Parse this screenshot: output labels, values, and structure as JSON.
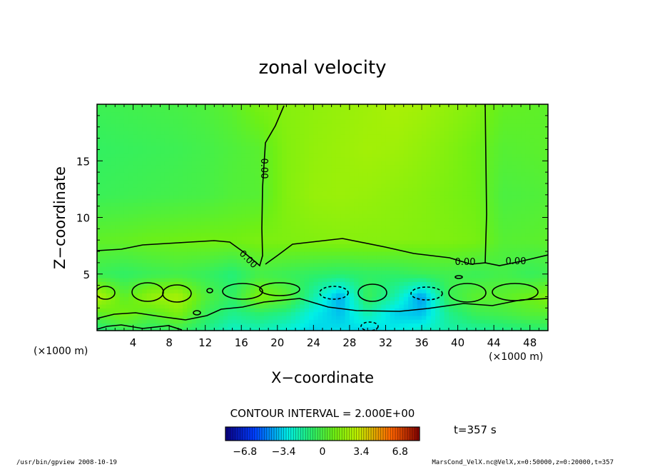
{
  "chart_data": {
    "type": "heatmap",
    "title": "zonal velocity",
    "xlabel": "X−coordinate",
    "ylabel": "Z−coordinate",
    "x_units": "(×1000 m)",
    "y_units": "(×1000 m)",
    "xlim": [
      0,
      50
    ],
    "ylim": [
      0,
      20
    ],
    "x_ticks": [
      4,
      8,
      12,
      16,
      20,
      24,
      28,
      32,
      36,
      40,
      44,
      48
    ],
    "x_tick_labels": [
      "4",
      "8",
      "12",
      "16",
      "20",
      "24",
      "28",
      "32",
      "36",
      "40",
      "44",
      "48"
    ],
    "y_ticks": [
      5,
      10,
      15
    ],
    "y_tick_labels": [
      "5",
      "10",
      "15"
    ],
    "contour_interval_text": "CONTOUR INTERVAL = 2.000E+00",
    "time_label": "t=357 s",
    "contour_labels": [
      "0.00",
      "0.00",
      "0.00",
      "0.00"
    ],
    "colorbar": {
      "vmin": -8.5,
      "vmax": 8.5,
      "tick_values": [
        -6.8,
        -3.4,
        0,
        3.4,
        6.8
      ],
      "tick_labels": [
        "−6.8",
        "−3.4",
        "0",
        "3.4",
        "6.8"
      ]
    },
    "footer_left": "/usr/bin/gpview   2008-10-19",
    "footer_right": "MarsCond_VelX.nc@VelX,x=0:50000,z=0:20000,t=357",
    "colors": {
      "background": "#ffffff",
      "field_high": "#8cf000",
      "field_mid": "#30f070",
      "field_low": "#00f0e0",
      "contour": "#000000"
    },
    "field": {
      "x": [
        0,
        3,
        6,
        9,
        12,
        15,
        18,
        21,
        24,
        27,
        30,
        33,
        36,
        39,
        42,
        45,
        48,
        50
      ],
      "z": [
        0,
        1.5,
        3,
        5,
        8,
        12,
        16,
        20
      ],
      "values": [
        [
          -1.5,
          -0.6,
          -1.0,
          -0.6,
          -1.5,
          -2.5,
          -2.2,
          -2.8,
          -3.5,
          -3.2,
          -3.6,
          -3.0,
          -2.5,
          -2.0,
          -1.8,
          -1.5,
          -1.2,
          -1.0
        ],
        [
          0.5,
          1.2,
          0.4,
          1.3,
          -0.5,
          -1.5,
          -1.0,
          -1.5,
          -3.0,
          -3.8,
          -2.0,
          -3.5,
          -3.8,
          -1.5,
          -0.5,
          -0.2,
          0.2,
          0.3
        ],
        [
          2.8,
          0.5,
          2.0,
          2.5,
          0.2,
          -0.8,
          1.5,
          0.5,
          -2.0,
          -4.2,
          -0.5,
          -2.0,
          -4.5,
          -0.5,
          0.5,
          0.5,
          1.0,
          1.5
        ],
        [
          -0.5,
          -0.8,
          -0.5,
          -0.3,
          -0.6,
          -1.2,
          -0.2,
          -0.5,
          -0.8,
          -1.0,
          -0.8,
          -0.8,
          -0.5,
          -0.3,
          -0.5,
          -0.2,
          -0.6,
          -0.4
        ],
        [
          0.6,
          0.7,
          0.9,
          1.0,
          1.1,
          1.1,
          1.3,
          1.4,
          1.5,
          1.6,
          1.6,
          1.6,
          1.5,
          1.4,
          1.2,
          0.3,
          0.4,
          0.5
        ],
        [
          -0.5,
          -0.4,
          -0.3,
          -0.2,
          -0.1,
          0.2,
          0.3,
          1.5,
          2.0,
          2.1,
          2.0,
          1.8,
          1.6,
          1.3,
          1.0,
          0.0,
          0.1,
          0.2
        ],
        [
          -0.7,
          -0.6,
          -0.5,
          -0.4,
          -0.2,
          0.1,
          0.4,
          1.5,
          1.9,
          2.1,
          2.3,
          2.2,
          1.9,
          1.5,
          1.0,
          0.3,
          0.4,
          0.5
        ],
        [
          -0.4,
          -0.3,
          -0.2,
          -0.1,
          0.1,
          0.5,
          1.3,
          1.6,
          1.8,
          2.0,
          2.2,
          2.5,
          2.3,
          1.9,
          1.5,
          0.7,
          0.6,
          0.5
        ]
      ]
    }
  }
}
